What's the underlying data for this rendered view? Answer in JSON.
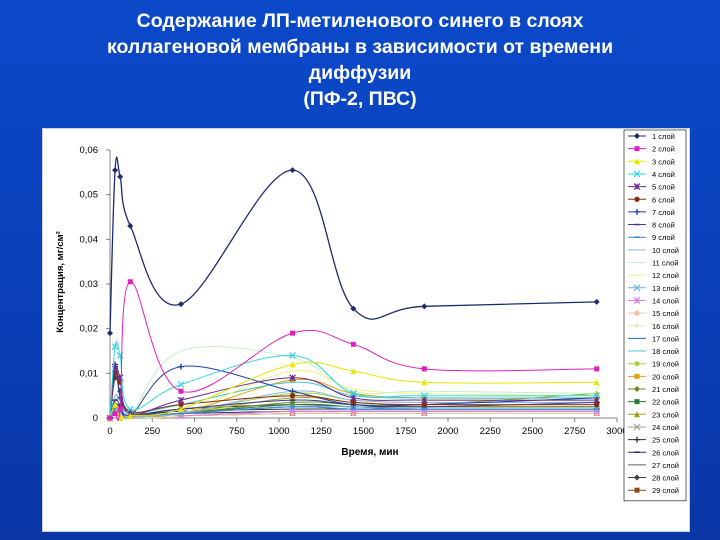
{
  "slide": {
    "title_lines": [
      "Содержание ЛП-метиленового синего в слоях",
      "коллагеновой мембраны в зависимости от времени",
      "диффузии",
      "(ПФ-2, ПВС)"
    ]
  },
  "chart_data": {
    "type": "line",
    "title": "",
    "xlabel": "Время, мин",
    "ylabel": "Концентрация, мг/см²",
    "xlim": [
      0,
      3000
    ],
    "ylim": [
      0,
      0.06
    ],
    "x_ticks": [
      0,
      250,
      500,
      750,
      1000,
      1250,
      1500,
      1750,
      2000,
      2250,
      2500,
      2750,
      3000
    ],
    "y_ticks": [
      0,
      0.01,
      0.02,
      0.03,
      0.04,
      0.05,
      0.06
    ],
    "x_tick_labels": [
      "0",
      "250",
      "500",
      "750",
      "1000",
      "1250",
      "1500",
      "1750",
      "2000",
      "2250",
      "2500",
      "2750",
      "3000"
    ],
    "y_tick_labels": [
      "0",
      "0,01",
      "0,02",
      "0,03",
      "0,04",
      "0,05",
      "0,06"
    ],
    "grid": false,
    "legend_position": "right",
    "series": [
      {
        "name": "1 слой",
        "color": "#1f2a6e",
        "marker": "diamond",
        "x": [
          0,
          30,
          60,
          120,
          420,
          1080,
          1440,
          1860,
          2880
        ],
        "values": [
          0.019,
          0.0555,
          0.054,
          0.043,
          0.0255,
          0.0555,
          0.0245,
          0.025,
          0.026
        ]
      },
      {
        "name": "2 слой",
        "color": "#e020b8",
        "marker": "square",
        "x": [
          0,
          30,
          60,
          120,
          420,
          1080,
          1440,
          1860,
          2880
        ],
        "values": [
          0.0,
          0.001,
          0.002,
          0.0305,
          0.006,
          0.019,
          0.0165,
          0.011,
          0.011
        ]
      },
      {
        "name": "3 слой",
        "color": "#e6e600",
        "marker": "triangle",
        "x": [
          0,
          30,
          60,
          120,
          420,
          1080,
          1440,
          1860,
          2880
        ],
        "values": [
          0.0,
          0.003,
          0.0,
          0.0005,
          0.002,
          0.012,
          0.0105,
          0.008,
          0.008
        ]
      },
      {
        "name": "4 слой",
        "color": "#33d6e6",
        "marker": "x",
        "x": [
          0,
          30,
          60,
          120,
          420,
          1080,
          1440,
          1860,
          2880
        ],
        "values": [
          0.0,
          0.016,
          0.014,
          0.002,
          0.0075,
          0.014,
          0.0055,
          0.005,
          0.005
        ]
      },
      {
        "name": "5 слой",
        "color": "#6a2a8c",
        "marker": "star",
        "x": [
          0,
          30,
          60,
          120,
          420,
          1080,
          1440,
          1860,
          2880
        ],
        "values": [
          0.0,
          0.011,
          0.009,
          0.001,
          0.004,
          0.009,
          0.0045,
          0.004,
          0.004
        ]
      },
      {
        "name": "6 слой",
        "color": "#8b2a0a",
        "marker": "circle",
        "x": [
          0,
          30,
          60,
          120,
          420,
          1080,
          1440,
          1860,
          2880
        ],
        "values": [
          0.0,
          0.01,
          0.008,
          0.0015,
          0.003,
          0.005,
          0.0035,
          0.003,
          0.003
        ]
      },
      {
        "name": "7 слой",
        "color": "#1a3fa0",
        "marker": "plus",
        "x": [
          0,
          30,
          60,
          120,
          420,
          1080,
          1440,
          1860,
          2880
        ],
        "values": [
          0.0,
          0.012,
          0.0045,
          0.0005,
          0.0115,
          0.006,
          0.003,
          0.003,
          0.0045
        ]
      },
      {
        "name": "8 слой",
        "color": "#3a3a9a",
        "marker": "dash",
        "x": [
          0,
          30,
          60,
          120,
          420,
          1080,
          1440,
          1860,
          2880
        ],
        "values": [
          0.0,
          0.004,
          0.003,
          0.0005,
          0.002,
          0.004,
          0.003,
          0.0025,
          0.0035
        ]
      },
      {
        "name": "9 слой",
        "color": "#3a8ad0",
        "marker": "dash",
        "x": [
          0,
          30,
          60,
          120,
          420,
          1080,
          1440,
          1860,
          2880
        ],
        "values": [
          0.0,
          0.002,
          0.0015,
          0.0005,
          0.001,
          0.0025,
          0.002,
          0.002,
          0.002
        ]
      },
      {
        "name": "10 слой",
        "color": "#8ab8e8",
        "marker": "none",
        "x": [
          0,
          30,
          60,
          120,
          420,
          1080,
          1440,
          1860,
          2880
        ],
        "values": [
          0.0,
          0.002,
          0.0015,
          0.0005,
          0.001,
          0.006,
          0.004,
          0.0035,
          0.0035
        ]
      },
      {
        "name": "11 слой",
        "color": "#c8f0c8",
        "marker": "none",
        "x": [
          0,
          30,
          60,
          120,
          420,
          1080,
          1440,
          1860,
          2880
        ],
        "values": [
          0.0,
          0.003,
          0.002,
          0.0005,
          0.015,
          0.0135,
          0.006,
          0.006,
          0.0055
        ]
      },
      {
        "name": "12 слой",
        "color": "#f0f080",
        "marker": "none",
        "x": [
          0,
          30,
          60,
          120,
          420,
          1080,
          1440,
          1860,
          2880
        ],
        "values": [
          0.0,
          0.002,
          0.0015,
          0.0005,
          0.001,
          0.0105,
          0.0065,
          0.0055,
          0.005
        ]
      },
      {
        "name": "13 слой",
        "color": "#70b0e0",
        "marker": "x",
        "x": [
          0,
          30,
          60,
          120,
          420,
          1080,
          1440,
          1860,
          2880
        ],
        "values": [
          0.0,
          0.002,
          0.0015,
          0.0005,
          0.001,
          0.0025,
          0.0025,
          0.002,
          0.002
        ]
      },
      {
        "name": "14 слой",
        "color": "#e080e0",
        "marker": "star",
        "x": [
          0,
          30,
          60,
          120,
          420,
          1080,
          1440,
          1860,
          2880
        ],
        "values": [
          0.0,
          0.0015,
          0.001,
          0.0005,
          0.0005,
          0.0015,
          0.0015,
          0.0015,
          0.0015
        ]
      },
      {
        "name": "15 слой",
        "color": "#f0c0a0",
        "marker": "circle",
        "x": [
          0,
          30,
          60,
          120,
          420,
          1080,
          1440,
          1860,
          2880
        ],
        "values": [
          0.0,
          0.001,
          0.001,
          0.0005,
          0.0005,
          0.001,
          0.001,
          0.001,
          0.001
        ]
      },
      {
        "name": "16 слой",
        "color": "#e8e8b0",
        "marker": "plus",
        "x": [
          0,
          30,
          60,
          120,
          420,
          1080,
          1440,
          1860,
          2880
        ],
        "values": [
          0.0,
          0.001,
          0.001,
          0.0005,
          0.0005,
          0.001,
          0.001,
          0.001,
          0.001
        ]
      },
      {
        "name": "17 слой",
        "color": "#1a6ad0",
        "marker": "none",
        "x": [
          0,
          30,
          60,
          120,
          420,
          1080,
          1440,
          1860,
          2880
        ],
        "values": [
          0.0,
          0.002,
          0.0015,
          0.0005,
          0.001,
          0.0025,
          0.002,
          0.002,
          0.002
        ]
      },
      {
        "name": "18 слой",
        "color": "#40c8d0",
        "marker": "none",
        "x": [
          0,
          30,
          60,
          120,
          420,
          1080,
          1440,
          1860,
          2880
        ],
        "values": [
          0.0,
          0.005,
          0.004,
          0.001,
          0.003,
          0.008,
          0.005,
          0.0045,
          0.0045
        ]
      },
      {
        "name": "19 слой",
        "color": "#a8d040",
        "marker": "circle",
        "x": [
          0,
          30,
          60,
          120,
          420,
          1080,
          1440,
          1860,
          2880
        ],
        "values": [
          0.0,
          0.002,
          0.0015,
          0.0005,
          0.001,
          0.0055,
          0.004,
          0.0035,
          0.0035
        ]
      },
      {
        "name": "20 слой",
        "color": "#e0a000",
        "marker": "square",
        "x": [
          0,
          30,
          60,
          120,
          420,
          1080,
          1440,
          1860,
          2880
        ],
        "values": [
          0.0,
          0.002,
          0.0015,
          0.0005,
          0.001,
          0.0085,
          0.0055,
          0.0045,
          0.0045
        ]
      },
      {
        "name": "21 слой",
        "color": "#6a8a20",
        "marker": "diamond",
        "x": [
          0,
          30,
          60,
          120,
          420,
          1080,
          1440,
          1860,
          2880
        ],
        "values": [
          0.0,
          0.002,
          0.0015,
          0.0005,
          0.001,
          0.0035,
          0.003,
          0.0025,
          0.0025
        ]
      },
      {
        "name": "22 слой",
        "color": "#2a7a3a",
        "marker": "square",
        "x": [
          0,
          30,
          60,
          120,
          420,
          1080,
          1440,
          1860,
          2880
        ],
        "values": [
          0.0,
          0.002,
          0.0015,
          0.0005,
          0.001,
          0.003,
          0.0025,
          0.002,
          0.002
        ]
      },
      {
        "name": "23 слой",
        "color": "#a0a020",
        "marker": "triangle",
        "x": [
          0,
          30,
          60,
          120,
          420,
          1080,
          1440,
          1860,
          2880
        ],
        "values": [
          0.0,
          0.002,
          0.0015,
          0.0005,
          0.001,
          0.0045,
          0.0035,
          0.003,
          0.0055
        ]
      },
      {
        "name": "24 слой",
        "color": "#a0a0a0",
        "marker": "x",
        "x": [
          0,
          30,
          60,
          120,
          420,
          1080,
          1440,
          1860,
          2880
        ],
        "values": [
          0.0,
          0.001,
          0.001,
          0.0005,
          0.0005,
          0.0015,
          0.0015,
          0.0015,
          0.0015
        ]
      },
      {
        "name": "25 слой",
        "color": "#303030",
        "marker": "plus",
        "x": [
          0,
          30,
          60,
          120,
          420,
          1080,
          1440,
          1860,
          2880
        ],
        "values": [
          0.0,
          0.003,
          0.0025,
          0.0005,
          0.0015,
          0.002,
          0.002,
          0.002,
          0.002
        ]
      },
      {
        "name": "26 слой",
        "color": "#2a2a6a",
        "marker": "dash",
        "x": [
          0,
          30,
          60,
          120,
          420,
          1080,
          1440,
          1860,
          2880
        ],
        "values": [
          0.0,
          0.002,
          0.0015,
          0.0005,
          0.001,
          0.0015,
          0.0015,
          0.0015,
          0.0015
        ]
      },
      {
        "name": "27 слой",
        "color": "#606060",
        "marker": "none",
        "x": [
          0,
          30,
          60,
          120,
          420,
          1080,
          1440,
          1860,
          2880
        ],
        "values": [
          0.0,
          0.001,
          0.001,
          0.0005,
          0.0005,
          0.001,
          0.001,
          0.001,
          0.001
        ]
      },
      {
        "name": "28 слой",
        "color": "#404040",
        "marker": "diamond",
        "x": [
          0,
          30,
          60,
          120,
          420,
          1080,
          1440,
          1860,
          2880
        ],
        "values": [
          0.0,
          0.009,
          0.006,
          0.001,
          0.002,
          0.003,
          0.0025,
          0.0025,
          0.0025
        ]
      },
      {
        "name": "29 слой",
        "color": "#8b4a1a",
        "marker": "square",
        "x": [
          0,
          30,
          60,
          120,
          420,
          1080,
          1440,
          1860,
          2880
        ],
        "values": [
          0.0,
          0.001,
          0.001,
          0.0005,
          0.0005,
          0.001,
          0.001,
          0.001,
          0.001
        ]
      }
    ]
  }
}
